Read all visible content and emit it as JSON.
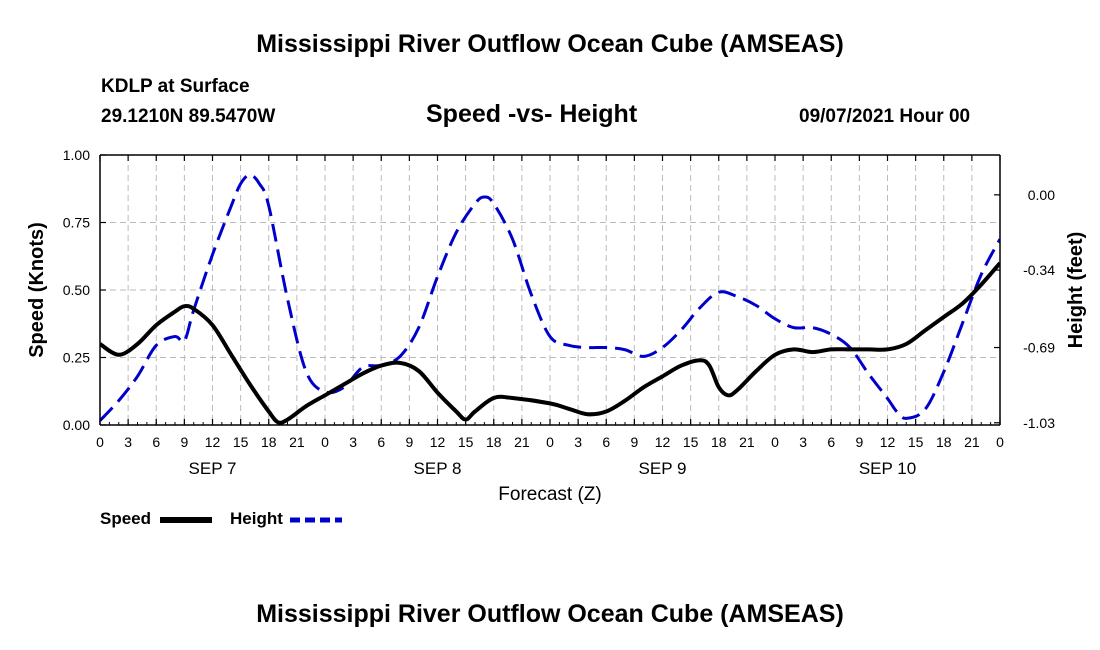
{
  "header": {
    "title": "Mississippi River Outflow Ocean Cube (AMSEAS)",
    "station": "KDLP at Surface",
    "coords": "29.1210N  89.5470W",
    "subtitle": "Speed -vs- Height",
    "date": "09/07/2021 Hour 00"
  },
  "footer": {
    "title": "Mississippi River Outflow Ocean Cube (AMSEAS)"
  },
  "legend": {
    "speed_label": "Speed",
    "height_label": "Height",
    "speed_color": "#000000",
    "height_color": "#0000cc"
  },
  "chart_data": {
    "type": "line",
    "xlabel": "Forecast (Z)",
    "ylabel_left": "Speed (Knots)",
    "ylabel_right": "Height (feet)",
    "x_range_hours": [
      0,
      96
    ],
    "x_tick_step_hours": 3,
    "x_tick_labels": [
      "0",
      "3",
      "6",
      "9",
      "12",
      "15",
      "18",
      "21",
      "0",
      "3",
      "6",
      "9",
      "12",
      "15",
      "18",
      "21",
      "0",
      "3",
      "6",
      "9",
      "12",
      "15",
      "18",
      "21",
      "0",
      "3",
      "6",
      "9",
      "12",
      "15",
      "18",
      "21",
      "0"
    ],
    "day_labels": [
      {
        "hour": 12,
        "label": "SEP 7"
      },
      {
        "hour": 36,
        "label": "SEP 8"
      },
      {
        "hour": 60,
        "label": "SEP 9"
      },
      {
        "hour": 84,
        "label": "SEP 10"
      }
    ],
    "ylim_left": [
      0,
      1
    ],
    "yticks_left": [
      "0.00",
      "0.25",
      "0.50",
      "0.75",
      "1.00"
    ],
    "yticks_left_values": [
      0,
      0.25,
      0.5,
      0.75,
      1.0
    ],
    "ylim_right": [
      -1.04,
      0.18
    ],
    "yticks_right": [
      "0.00",
      "-0.34",
      "-0.69",
      "-1.03"
    ],
    "yticks_right_values": [
      0.0,
      -0.34,
      -0.69,
      -1.03
    ],
    "grid": true,
    "series": [
      {
        "name": "Speed",
        "axis": "left",
        "style": "solid",
        "color": "#000000",
        "x": [
          0,
          2,
          4,
          6,
          8,
          9,
          10,
          12,
          14,
          16,
          18,
          19,
          20,
          22,
          24,
          26,
          28,
          30,
          32,
          34,
          36,
          38,
          39,
          40,
          42,
          44,
          48,
          50,
          52,
          54,
          56,
          58,
          60,
          62,
          64,
          65,
          66,
          67,
          68,
          70,
          72,
          74,
          76,
          78,
          80,
          82,
          84,
          86,
          88,
          90,
          92,
          94,
          96
        ],
        "y": [
          0.3,
          0.26,
          0.3,
          0.37,
          0.42,
          0.44,
          0.43,
          0.37,
          0.26,
          0.15,
          0.05,
          0.01,
          0.02,
          0.07,
          0.11,
          0.15,
          0.19,
          0.22,
          0.23,
          0.2,
          0.12,
          0.05,
          0.02,
          0.05,
          0.1,
          0.1,
          0.08,
          0.06,
          0.04,
          0.05,
          0.09,
          0.14,
          0.18,
          0.22,
          0.24,
          0.22,
          0.14,
          0.11,
          0.13,
          0.2,
          0.26,
          0.28,
          0.27,
          0.28,
          0.28,
          0.28,
          0.28,
          0.3,
          0.35,
          0.4,
          0.45,
          0.52,
          0.6
        ]
      },
      {
        "name": "Height",
        "axis": "right",
        "style": "dashed",
        "color": "#0000cc",
        "x": [
          0,
          2,
          4,
          6,
          8,
          9,
          10,
          12,
          14,
          15,
          16,
          17,
          18,
          20,
          22,
          24,
          26,
          28,
          30,
          32,
          34,
          36,
          38,
          40,
          41,
          42,
          44,
          46,
          48,
          50,
          52,
          54,
          56,
          58,
          60,
          62,
          64,
          66,
          68,
          70,
          72,
          74,
          76,
          78,
          80,
          82,
          84,
          85,
          86,
          88,
          90,
          92,
          94,
          96
        ],
        "y": [
          -1.02,
          -0.93,
          -0.82,
          -0.68,
          -0.64,
          -0.66,
          -0.52,
          -0.27,
          -0.05,
          0.05,
          0.09,
          0.05,
          -0.05,
          -0.47,
          -0.8,
          -0.89,
          -0.87,
          -0.78,
          -0.77,
          -0.73,
          -0.6,
          -0.37,
          -0.17,
          -0.04,
          -0.01,
          -0.04,
          -0.2,
          -0.45,
          -0.64,
          -0.68,
          -0.69,
          -0.69,
          -0.7,
          -0.73,
          -0.69,
          -0.61,
          -0.51,
          -0.44,
          -0.46,
          -0.5,
          -0.56,
          -0.6,
          -0.6,
          -0.63,
          -0.69,
          -0.81,
          -0.92,
          -0.98,
          -1.01,
          -0.97,
          -0.8,
          -0.58,
          -0.36,
          -0.2
        ]
      }
    ]
  }
}
